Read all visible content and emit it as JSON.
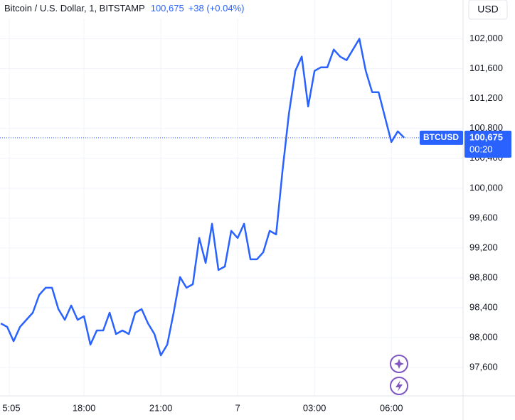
{
  "chart_data": {
    "type": "line",
    "title": "Bitcoin / U.S. Dollar, 1, BITSTAMP",
    "change": "+38 (+0.04%)",
    "currency": "USD",
    "last_price": {
      "value": 100675,
      "label": "100,675"
    },
    "countdown": "00:20",
    "x": [
      14.75,
      15,
      15.25,
      15.5,
      15.75,
      16,
      16.25,
      16.5,
      16.75,
      17,
      17.25,
      17.5,
      17.75,
      18,
      18.25,
      18.5,
      18.75,
      19,
      19.25,
      19.5,
      19.75,
      20,
      20.25,
      20.5,
      20.75,
      21,
      21.25,
      21.5,
      21.75,
      22,
      22.25,
      22.5,
      22.75,
      23,
      23.25,
      23.5,
      23.75,
      24,
      24.25,
      24.5,
      24.75,
      25,
      25.25,
      25.5,
      25.75,
      26,
      26.25,
      26.5,
      26.75,
      27,
      27.25,
      27.5,
      27.75,
      28,
      28.25,
      28.5,
      28.75,
      29,
      29.25,
      29.5,
      29.75,
      30,
      30.25,
      30.5
    ],
    "series": [
      {
        "name": "BTCUSD",
        "color": "#2962ff",
        "values": [
          98190,
          98143,
          97952,
          98143,
          98238,
          98333,
          98571,
          98667,
          98667,
          98381,
          98238,
          98429,
          98238,
          98286,
          97905,
          98095,
          98095,
          98333,
          98048,
          98095,
          98048,
          98333,
          98381,
          98190,
          98048,
          97762,
          97905,
          98333,
          98810,
          98667,
          98714,
          99333,
          99000,
          99524,
          98905,
          98952,
          99429,
          99333,
          99524,
          99048,
          99048,
          99143,
          99429,
          99381,
          100238,
          101000,
          101571,
          101762,
          101095,
          101571,
          101619,
          101619,
          101857,
          101762,
          101714,
          101857,
          102000,
          101571,
          101286,
          101286,
          100952,
          100619,
          100762,
          100675
        ]
      }
    ],
    "xlim": [
      14.72,
      32.8
    ],
    "ylim": [
      97220,
      102520
    ],
    "xticks": [
      {
        "value": 15.083,
        "label": "5:05"
      },
      {
        "value": 18,
        "label": "18:00"
      },
      {
        "value": 21,
        "label": "21:00"
      },
      {
        "value": 24,
        "label": "7"
      },
      {
        "value": 27,
        "label": "03:00"
      },
      {
        "value": 30,
        "label": "06:00"
      }
    ],
    "yticks": [
      {
        "value": 97600,
        "label": "97,600"
      },
      {
        "value": 98000,
        "label": "98,000"
      },
      {
        "value": 98400,
        "label": "98,400"
      },
      {
        "value": 98800,
        "label": "98,800"
      },
      {
        "value": 99200,
        "label": "99,200"
      },
      {
        "value": 99600,
        "label": "99,600"
      },
      {
        "value": 100000,
        "label": "100,000"
      },
      {
        "value": 100400,
        "label": "100,400"
      },
      {
        "value": 100800,
        "label": "100,800"
      },
      {
        "value": 101200,
        "label": "101,200"
      },
      {
        "value": 101600,
        "label": "101,600"
      },
      {
        "value": 102000,
        "label": "102,000"
      }
    ],
    "grid": true
  }
}
